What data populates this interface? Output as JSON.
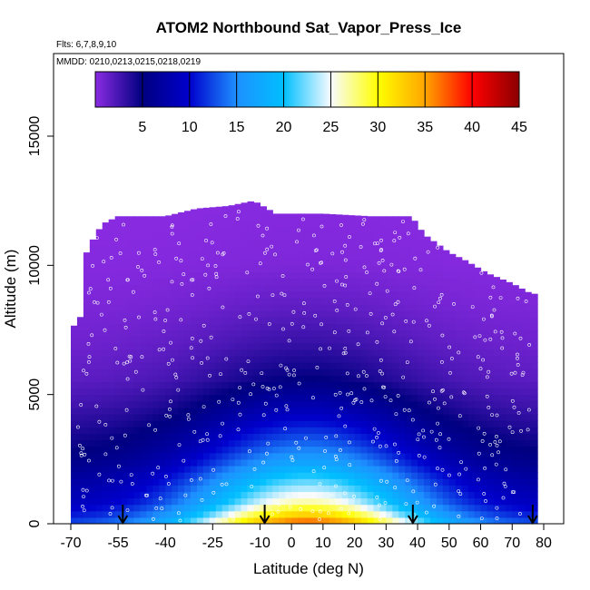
{
  "chart_data": {
    "type": "heatmap",
    "title": "ATOM2 Northbound Sat_Vapor_Press_Ice",
    "subtitle_flights": "Flts: 6,7,8,9,10",
    "subtitle_dates": "MMDD: 0210,0213,0215,0218,0219",
    "xlabel": "Latitude (deg N)",
    "ylabel": "Altitude (m)",
    "xlim": [
      -70,
      80
    ],
    "ylim": [
      0,
      17500
    ],
    "x_ticks": [
      -70,
      -55,
      -40,
      -25,
      -10,
      0,
      10,
      20,
      30,
      40,
      50,
      60,
      70,
      80
    ],
    "y_ticks": [
      0,
      5000,
      10000,
      15000
    ],
    "colorbar": {
      "min": 0,
      "max": 45,
      "ticks": [
        5,
        10,
        15,
        20,
        25,
        30,
        35,
        40,
        45
      ],
      "colors": [
        "#8a2be2",
        "#000080",
        "#0000cd",
        "#1e90ff",
        "#00bfff",
        "#f8fbff",
        "#ffff00",
        "#ffa500",
        "#ff0000",
        "#8b0000"
      ]
    },
    "profile_markers_lat": [
      -53.5,
      -8.5,
      38.5,
      76.5
    ],
    "data_extent_top_m": [
      [
        -70,
        7500
      ],
      [
        -67,
        8000
      ],
      [
        -65,
        10500
      ],
      [
        -63,
        11000
      ],
      [
        -60,
        11600
      ],
      [
        -55,
        11900
      ],
      [
        -40,
        11900
      ],
      [
        -30,
        12200
      ],
      [
        -20,
        12300
      ],
      [
        -12,
        12500
      ],
      [
        -5,
        12000
      ],
      [
        10,
        12000
      ],
      [
        25,
        11900
      ],
      [
        38,
        11900
      ],
      [
        42,
        11200
      ],
      [
        50,
        10500
      ],
      [
        55,
        10200
      ],
      [
        62,
        9700
      ],
      [
        66,
        9500
      ],
      [
        70,
        9300
      ],
      [
        76,
        8900
      ]
    ],
    "approx_value_vs_altitude_m": [
      [
        0,
        38
      ],
      [
        400,
        32
      ],
      [
        800,
        27
      ],
      [
        1300,
        24
      ],
      [
        1800,
        21
      ],
      [
        2400,
        17
      ],
      [
        3000,
        14
      ],
      [
        3800,
        11
      ],
      [
        4600,
        8
      ],
      [
        5600,
        5
      ],
      [
        7000,
        3
      ],
      [
        8500,
        1.5
      ],
      [
        10000,
        0.5
      ]
    ]
  }
}
